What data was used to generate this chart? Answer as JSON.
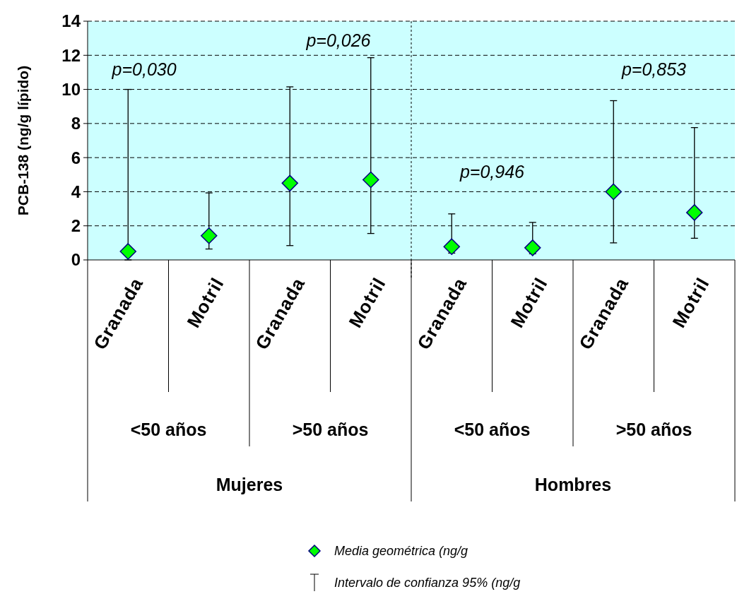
{
  "chart_data": {
    "type": "scatter",
    "ylabel": "PCB-138 (ng/g lípido)",
    "categories": [
      "Granada",
      "Motril",
      "Granada",
      "Motril",
      "Granada",
      "Motril",
      "Granada",
      "Motril"
    ],
    "series": [
      {
        "name": "Media geométrica (ng/g",
        "color": "#00ff00",
        "values": [
          0.5,
          1.42,
          4.5,
          4.7,
          0.78,
          0.71,
          4.0,
          2.78
        ],
        "errors": [
          [
            0.0,
            10.0
          ],
          [
            0.64,
            3.93
          ],
          [
            0.84,
            10.15
          ],
          [
            1.55,
            11.86
          ],
          [
            0.4,
            2.7
          ],
          [
            0.36,
            2.2
          ],
          [
            1.0,
            9.34
          ],
          [
            1.27,
            7.76
          ]
        ]
      }
    ],
    "annotations": [
      "<50 años",
      ">50 años",
      "<50 años",
      ">50 años",
      "Mujeres",
      "Hombres",
      "p=0,030",
      "p=0,026",
      "p=0,946",
      "p=0,853",
      "Intervalo de confianza 95% (ng/g"
    ],
    "ylim": [
      0,
      14
    ],
    "yticks": [
      0,
      2,
      4,
      6,
      8,
      10,
      12,
      14
    ],
    "grid": "y",
    "legend": "bottom",
    "marker": "diamond"
  }
}
